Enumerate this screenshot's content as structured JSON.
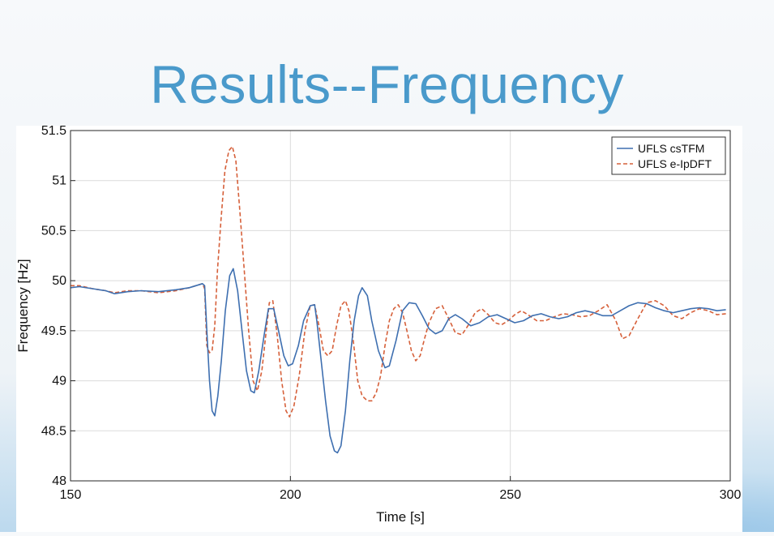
{
  "slide": {
    "title": "Results--Frequency"
  },
  "chart_data": {
    "type": "line",
    "xlabel": "Time [s]",
    "ylabel": "Frequency [Hz]",
    "xlim": [
      150,
      300
    ],
    "ylim": [
      48,
      51.5
    ],
    "xticks": [
      150,
      200,
      250,
      300
    ],
    "yticks": [
      48,
      48.5,
      49,
      49.5,
      50,
      50.5,
      51,
      51.5
    ],
    "grid": true,
    "legend_position": "top-right",
    "series": [
      {
        "name": "UFLS csTFM",
        "color": "#3e6fb0",
        "dash": "solid",
        "x": [
          150,
          152,
          155,
          158,
          160,
          163,
          166,
          170,
          174,
          177,
          180,
          180.5,
          181,
          181.6,
          182.2,
          182.8,
          183.5,
          184.3,
          185.2,
          186.2,
          187,
          188,
          189,
          190,
          191,
          191.8,
          192.8,
          194,
          195,
          196.2,
          197.3,
          198.5,
          199.5,
          200.5,
          201.8,
          203,
          204.5,
          205.5,
          206,
          207,
          208,
          209,
          210,
          210.7,
          211.5,
          212.5,
          213.5,
          214.5,
          215.5,
          216.3,
          217.5,
          218.5,
          220,
          221.5,
          222.5,
          224,
          225.5,
          227,
          228.5,
          230,
          231.5,
          233,
          234.5,
          236,
          237.5,
          239,
          241,
          243,
          245,
          247,
          249,
          251,
          253,
          255,
          257,
          259,
          261,
          263,
          265,
          267,
          269,
          271,
          273,
          275,
          277,
          279,
          281,
          283,
          285,
          287,
          289,
          291,
          293,
          295,
          297,
          299
        ],
        "y": [
          49.93,
          49.94,
          49.92,
          49.9,
          49.87,
          49.89,
          49.9,
          49.89,
          49.91,
          49.93,
          49.97,
          49.95,
          49.5,
          49.0,
          48.7,
          48.65,
          48.85,
          49.2,
          49.7,
          50.05,
          50.12,
          49.9,
          49.5,
          49.1,
          48.9,
          48.88,
          49.1,
          49.45,
          49.72,
          49.72,
          49.5,
          49.25,
          49.15,
          49.17,
          49.35,
          49.6,
          49.75,
          49.76,
          49.6,
          49.2,
          48.8,
          48.45,
          48.3,
          48.28,
          48.35,
          48.7,
          49.2,
          49.6,
          49.85,
          49.93,
          49.85,
          49.6,
          49.3,
          49.13,
          49.15,
          49.4,
          49.7,
          49.78,
          49.77,
          49.65,
          49.52,
          49.47,
          49.5,
          49.62,
          49.66,
          49.62,
          49.55,
          49.58,
          49.64,
          49.66,
          49.62,
          49.58,
          49.6,
          49.65,
          49.67,
          49.64,
          49.62,
          49.64,
          49.68,
          49.7,
          49.68,
          49.65,
          49.65,
          49.7,
          49.75,
          49.78,
          49.77,
          49.73,
          49.7,
          49.68,
          49.7,
          49.72,
          49.73,
          49.72,
          49.7,
          49.71
        ]
      },
      {
        "name": "UFLS e-IpDFT",
        "color": "#d6603a",
        "dash": "dashed",
        "x": [
          150,
          152,
          155,
          158,
          160,
          163,
          166,
          170,
          174,
          177,
          180,
          180.5,
          181,
          181.6,
          182.2,
          182.8,
          183.4,
          184.2,
          185.1,
          186,
          186.8,
          187.6,
          188.5,
          189.5,
          190.5,
          191.5,
          192.5,
          193.5,
          194.5,
          195.2,
          196,
          197,
          198,
          199,
          199.8,
          200.8,
          202,
          203.3,
          204.5,
          205.5,
          206.5,
          207.5,
          208.5,
          209.5,
          210.5,
          211.5,
          212.5,
          213.3,
          214.3,
          215.3,
          216.3,
          217.5,
          218.5,
          219.5,
          220.5,
          221.5,
          222.5,
          223.5,
          224.5,
          225.5,
          226.5,
          227.5,
          228.5,
          229.5,
          230.5,
          231.5,
          233,
          234.5,
          236,
          237.5,
          239,
          240.5,
          242,
          243.5,
          245,
          246.5,
          248,
          249.5,
          251,
          252.5,
          254,
          256,
          258,
          260,
          262,
          264,
          266,
          268,
          270,
          272,
          274,
          275.5,
          277,
          279,
          281,
          283,
          285,
          287,
          289,
          291,
          293,
          295,
          297,
          299
        ],
        "y": [
          49.95,
          49.95,
          49.92,
          49.9,
          49.88,
          49.9,
          49.9,
          49.88,
          49.9,
          49.93,
          49.97,
          49.92,
          49.35,
          49.28,
          49.3,
          49.55,
          50.1,
          50.6,
          51.1,
          51.3,
          51.34,
          51.2,
          50.7,
          50.1,
          49.5,
          49.0,
          48.9,
          49.1,
          49.5,
          49.78,
          49.8,
          49.45,
          49.0,
          48.7,
          48.64,
          48.75,
          49.05,
          49.5,
          49.75,
          49.76,
          49.55,
          49.3,
          49.25,
          49.3,
          49.55,
          49.75,
          49.8,
          49.7,
          49.4,
          49.0,
          48.85,
          48.8,
          48.8,
          48.88,
          49.05,
          49.35,
          49.6,
          49.72,
          49.76,
          49.68,
          49.5,
          49.3,
          49.2,
          49.25,
          49.42,
          49.58,
          49.72,
          49.75,
          49.62,
          49.48,
          49.46,
          49.56,
          49.68,
          49.72,
          49.66,
          49.58,
          49.56,
          49.6,
          49.66,
          49.7,
          49.66,
          49.6,
          49.6,
          49.64,
          49.67,
          49.66,
          49.64,
          49.65,
          49.7,
          49.76,
          49.6,
          49.42,
          49.45,
          49.62,
          49.78,
          49.8,
          49.75,
          49.65,
          49.62,
          49.68,
          49.72,
          49.7,
          49.66,
          49.67
        ]
      }
    ]
  }
}
